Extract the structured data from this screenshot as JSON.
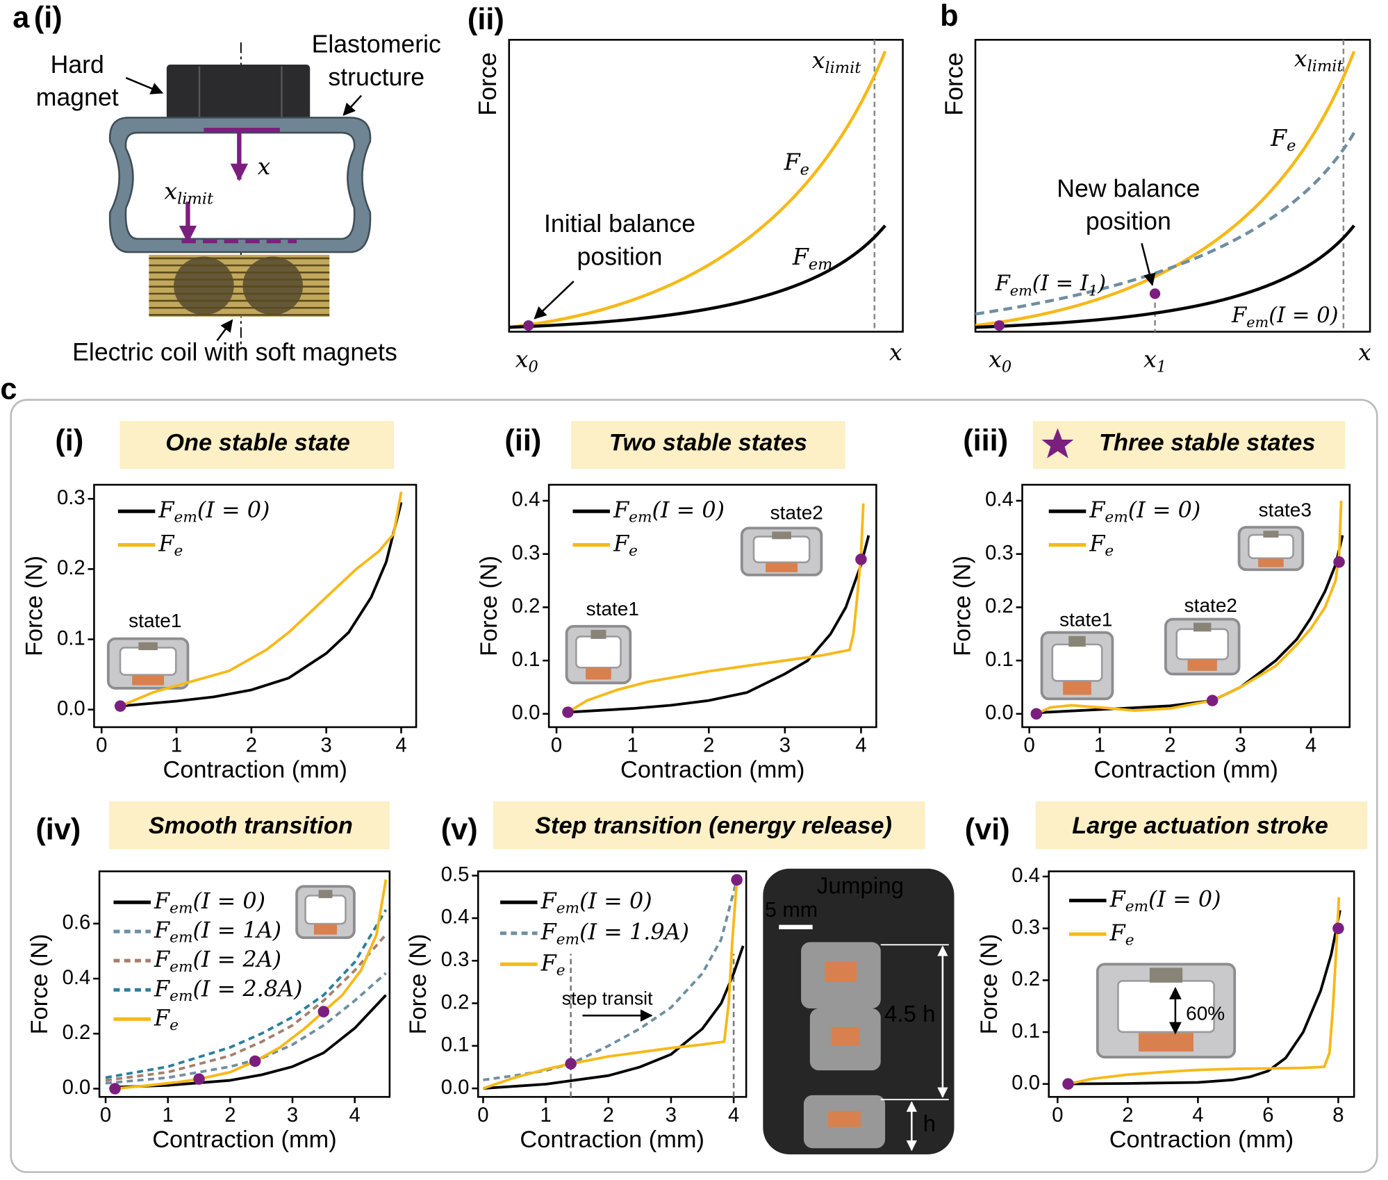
{
  "figure": {
    "panel_labels": {
      "a": "a",
      "a_i": "(i)",
      "a_ii": "(ii)",
      "b": "b",
      "c": "c"
    },
    "schematic": {
      "hard_magnet": {
        "lines": [
          "Hard",
          "magnet"
        ]
      },
      "elastomeric": {
        "lines": [
          "Elastomeric",
          "structure"
        ]
      },
      "x": "x",
      "x_limit": [
        "x",
        "limit"
      ],
      "coil": "Electric coil with soft magnets"
    },
    "concept_ii": {
      "ylabel": "Force",
      "xlabel": "x",
      "x0": [
        "x",
        "0"
      ],
      "x_limit": [
        "x",
        "limit"
      ],
      "fe": [
        "F",
        "e"
      ],
      "fem": [
        "F",
        "em"
      ],
      "note": {
        "lines": [
          "Initial balance",
          "position"
        ]
      }
    },
    "concept_b": {
      "ylabel": "Force",
      "xlabel": "x",
      "x0": [
        "x",
        "0"
      ],
      "x1": [
        "x",
        "1"
      ],
      "x_limit": [
        "x",
        "limit"
      ],
      "fe": [
        "F",
        "e"
      ],
      "fem1": [
        "F",
        "em",
        "(I = I",
        "1",
        ")"
      ],
      "fem0": [
        "F",
        "em",
        "(I = 0)"
      ],
      "note": {
        "lines": [
          "New balance",
          "position"
        ]
      }
    }
  },
  "chart_data": [
    {
      "type": "line",
      "panel": "(i)",
      "title": "One stable state",
      "xlabel": "Contraction (mm)",
      "ylabel": "Force (N)",
      "xlim": [
        -0.1,
        4.2
      ],
      "ylim": [
        -0.025,
        0.32
      ],
      "xticks": [
        0,
        1,
        2,
        3,
        4
      ],
      "yticks": [
        {
          "value": 0,
          "label": "0.0"
        },
        0.1,
        0.2,
        0.3
      ],
      "legend": "upper left",
      "series": [
        {
          "name": [
            "F",
            "em",
            "(I = 0)"
          ],
          "color": "#000000",
          "x": [
            0.25,
            1,
            1.5,
            2,
            2.5,
            3,
            3.3,
            3.6,
            3.8,
            4
          ],
          "values": [
            0.005,
            0.012,
            0.018,
            0.028,
            0.045,
            0.08,
            0.11,
            0.16,
            0.21,
            0.295
          ]
        },
        {
          "name": [
            "F",
            "e"
          ],
          "color": "#f7b918",
          "x": [
            0.25,
            0.7,
            1.2,
            1.7,
            2.2,
            2.5,
            2.8,
            3.1,
            3.4,
            3.7,
            3.9,
            4
          ],
          "values": [
            0.005,
            0.025,
            0.04,
            0.055,
            0.085,
            0.11,
            0.14,
            0.17,
            0.2,
            0.225,
            0.25,
            0.31
          ]
        }
      ],
      "points": {
        "color": "#7b1f7f",
        "x": [
          0.25
        ],
        "values": [
          0.005
        ]
      },
      "insets": [
        "state1"
      ]
    },
    {
      "type": "line",
      "panel": "(ii)",
      "title": "Two stable states",
      "xlabel": "Contraction (mm)",
      "ylabel": "Force (N)",
      "xlim": [
        -0.1,
        4.2
      ],
      "ylim": [
        -0.025,
        0.43
      ],
      "xticks": [
        0,
        1,
        2,
        3,
        4
      ],
      "yticks": [
        {
          "value": 0,
          "label": "0.0"
        },
        0.1,
        0.2,
        0.3,
        0.4
      ],
      "legend": "upper left",
      "series": [
        {
          "name": [
            "F",
            "em",
            "(I = 0)"
          ],
          "color": "#000000",
          "x": [
            0.15,
            1,
            1.5,
            2,
            2.5,
            3,
            3.3,
            3.6,
            3.8,
            4,
            4.1
          ],
          "values": [
            0.003,
            0.01,
            0.016,
            0.025,
            0.04,
            0.075,
            0.1,
            0.15,
            0.2,
            0.28,
            0.335
          ]
        },
        {
          "name": [
            "F",
            "e"
          ],
          "color": "#f7b918",
          "x": [
            0.15,
            0.4,
            0.8,
            1.2,
            1.6,
            2,
            2.5,
            3,
            3.5,
            3.85,
            3.9,
            3.95,
            4,
            4.03
          ],
          "values": [
            0.003,
            0.025,
            0.045,
            0.06,
            0.07,
            0.08,
            0.09,
            0.1,
            0.11,
            0.12,
            0.15,
            0.22,
            0.3,
            0.395
          ]
        }
      ],
      "points": {
        "color": "#7b1f7f",
        "x": [
          0.15,
          4.0
        ],
        "values": [
          0.003,
          0.29
        ]
      },
      "insets": [
        "state2",
        "state1"
      ]
    },
    {
      "type": "line",
      "panel": "(iii)",
      "title": "Three stable states",
      "xlabel": "Contraction (mm)",
      "ylabel": "Force (N)",
      "xlim": [
        -0.1,
        4.55
      ],
      "ylim": [
        -0.025,
        0.43
      ],
      "xticks": [
        0,
        1,
        2,
        3,
        4
      ],
      "yticks": [
        {
          "value": 0,
          "label": "0.0"
        },
        0.1,
        0.2,
        0.3,
        0.4
      ],
      "legend": "upper left",
      "series": [
        {
          "name": [
            "F",
            "em",
            "(I = 0)"
          ],
          "color": "#000000",
          "x": [
            0.1,
            1,
            2,
            2.6,
            3,
            3.5,
            3.8,
            4,
            4.2,
            4.35,
            4.45
          ],
          "values": [
            0.002,
            0.008,
            0.015,
            0.025,
            0.05,
            0.1,
            0.14,
            0.18,
            0.23,
            0.28,
            0.335
          ]
        },
        {
          "name": [
            "F",
            "e"
          ],
          "color": "#f7b918",
          "x": [
            0.1,
            0.3,
            0.6,
            1,
            1.5,
            2,
            2.6,
            3,
            3.5,
            3.8,
            4,
            4.2,
            4.35,
            4.4,
            4.43
          ],
          "values": [
            0,
            0.012,
            0.016,
            0.012,
            0.006,
            0.01,
            0.025,
            0.05,
            0.09,
            0.13,
            0.16,
            0.2,
            0.25,
            0.3,
            0.4
          ]
        }
      ],
      "points": {
        "color": "#7b1f7f",
        "x": [
          0.1,
          2.6,
          4.4
        ],
        "values": [
          0,
          0.025,
          0.285
        ]
      },
      "insets": [
        "state3",
        "state1",
        "state2"
      ]
    },
    {
      "type": "line",
      "panel": "(iv)",
      "title": "Smooth transition",
      "xlabel": "Contraction (mm)",
      "ylabel": "Force (N)",
      "xlim": [
        -0.1,
        4.56
      ],
      "ylim": [
        -0.03,
        0.79
      ],
      "xticks": [
        0,
        1,
        2,
        3,
        4
      ],
      "yticks": [
        {
          "value": 0,
          "label": "0.0"
        },
        0.2,
        0.4,
        0.6
      ],
      "legend": "upper left",
      "series": [
        {
          "name": [
            "F",
            "em",
            "(I = 0)"
          ],
          "color": "#000000",
          "x": [
            0.1,
            1,
            2,
            2.5,
            3,
            3.5,
            4,
            4.5
          ],
          "values": [
            0.005,
            0.012,
            0.03,
            0.05,
            0.08,
            0.13,
            0.22,
            0.34
          ]
        },
        {
          "name": [
            "F",
            "em",
            "(I = 1A)"
          ],
          "color": "#6f8ea0",
          "dashed": true,
          "x": [
            0,
            1,
            2,
            2.5,
            3,
            3.5,
            4,
            4.5
          ],
          "values": [
            0.02,
            0.04,
            0.08,
            0.11,
            0.16,
            0.23,
            0.32,
            0.42
          ]
        },
        {
          "name": [
            "F",
            "em",
            "(I = 2A)"
          ],
          "color": "#a57f6c",
          "dashed": true,
          "x": [
            0,
            1,
            2,
            2.5,
            3,
            3.5,
            4,
            4.5
          ],
          "values": [
            0.03,
            0.06,
            0.12,
            0.17,
            0.23,
            0.32,
            0.43,
            0.56
          ]
        },
        {
          "name": [
            "F",
            "em",
            "(I = 2.8A)"
          ],
          "color": "#2a7f9e",
          "dashed": true,
          "x": [
            0,
            1,
            2,
            2.5,
            3,
            3.5,
            4,
            4.5
          ],
          "values": [
            0.04,
            0.08,
            0.15,
            0.2,
            0.26,
            0.34,
            0.46,
            0.65
          ]
        },
        {
          "name": [
            "F",
            "e"
          ],
          "color": "#f7b918",
          "x": [
            0.15,
            0.7,
            1.2,
            1.5,
            2,
            2.4,
            2.8,
            3.2,
            3.5,
            3.8,
            4.1,
            4.35,
            4.5
          ],
          "values": [
            0,
            0.012,
            0.025,
            0.035,
            0.06,
            0.1,
            0.15,
            0.22,
            0.28,
            0.34,
            0.43,
            0.56,
            0.76
          ]
        }
      ],
      "points": {
        "color": "#7b1f7f",
        "x": [
          0.15,
          1.5,
          2.4,
          3.5
        ],
        "values": [
          0,
          0.035,
          0.1,
          0.28
        ]
      },
      "insets": []
    },
    {
      "type": "line",
      "panel": "(v)",
      "title": "Step transition (energy release)",
      "xlabel": "Contraction (mm)",
      "ylabel": "Force (N)",
      "xlim": [
        -0.08,
        4.2
      ],
      "ylim": [
        -0.02,
        0.51
      ],
      "xticks": [
        0,
        1,
        2,
        3,
        4
      ],
      "yticks": [
        {
          "value": 0,
          "label": "0.0"
        },
        0.1,
        0.2,
        0.3,
        0.4,
        0.5
      ],
      "legend": "upper left",
      "series": [
        {
          "name": [
            "F",
            "em",
            "(I = 0)"
          ],
          "color": "#000000",
          "x": [
            0,
            1,
            2,
            2.5,
            3,
            3.5,
            3.8,
            4,
            4.15
          ],
          "values": [
            0,
            0.01,
            0.03,
            0.05,
            0.08,
            0.14,
            0.2,
            0.27,
            0.335
          ]
        },
        {
          "name": [
            "F",
            "em",
            "(I = 1.9A)"
          ],
          "color": "#6f8ea0",
          "dashed": true,
          "x": [
            0,
            0.5,
            1,
            1.4,
            2,
            2.5,
            3,
            3.5,
            3.8,
            4.05
          ],
          "values": [
            0.02,
            0.03,
            0.042,
            0.058,
            0.1,
            0.14,
            0.19,
            0.27,
            0.35,
            0.49
          ]
        },
        {
          "name": [
            "F",
            "e"
          ],
          "color": "#f7b918",
          "x": [
            0,
            0.5,
            1,
            1.4,
            2,
            2.5,
            3,
            3.5,
            3.85,
            3.92,
            3.98,
            4.05
          ],
          "values": [
            0,
            0.025,
            0.045,
            0.058,
            0.075,
            0.085,
            0.095,
            0.103,
            0.11,
            0.2,
            0.35,
            0.49
          ]
        }
      ],
      "points": {
        "color": "#7b1f7f",
        "x": [
          1.4,
          4.05
        ],
        "values": [
          0.058,
          0.49
        ]
      },
      "vlines": [
        1.4,
        4.0
      ],
      "annotation": "step transit",
      "photo": {
        "title": "Jumping",
        "scale": "5 mm",
        "height": "4.5 h",
        "unit": "h"
      },
      "insets": []
    },
    {
      "type": "line",
      "panel": "(vi)",
      "title": "Large actuation stroke",
      "xlabel": "Contraction (mm)",
      "ylabel": "Force (N)",
      "xlim": [
        -0.25,
        8.45
      ],
      "ylim": [
        -0.025,
        0.41
      ],
      "xticks": [
        0,
        2,
        4,
        6,
        8
      ],
      "yticks": [
        {
          "value": 0,
          "label": "0.0"
        },
        0.1,
        0.2,
        0.3,
        0.4
      ],
      "legend": "upper left",
      "series": [
        {
          "name": [
            "F",
            "em",
            "(I = 0)"
          ],
          "color": "#000000",
          "x": [
            0.3,
            2,
            4,
            5,
            5.5,
            6,
            6.5,
            7,
            7.5,
            7.8,
            8.05
          ],
          "values": [
            0,
            0.001,
            0.003,
            0.008,
            0.014,
            0.025,
            0.05,
            0.1,
            0.18,
            0.25,
            0.335
          ]
        },
        {
          "name": [
            "F",
            "e"
          ],
          "color": "#f7b918",
          "x": [
            0.3,
            1,
            2,
            3,
            4,
            5,
            6,
            7,
            7.6,
            7.75,
            7.85,
            7.95,
            8.02
          ],
          "values": [
            0,
            0.01,
            0.018,
            0.023,
            0.027,
            0.029,
            0.03,
            0.031,
            0.033,
            0.06,
            0.15,
            0.27,
            0.36
          ]
        }
      ],
      "points": {
        "color": "#7b1f7f",
        "x": [
          0.3,
          8
        ],
        "values": [
          0,
          0.3
        ]
      },
      "insets": [
        "60%"
      ]
    }
  ]
}
